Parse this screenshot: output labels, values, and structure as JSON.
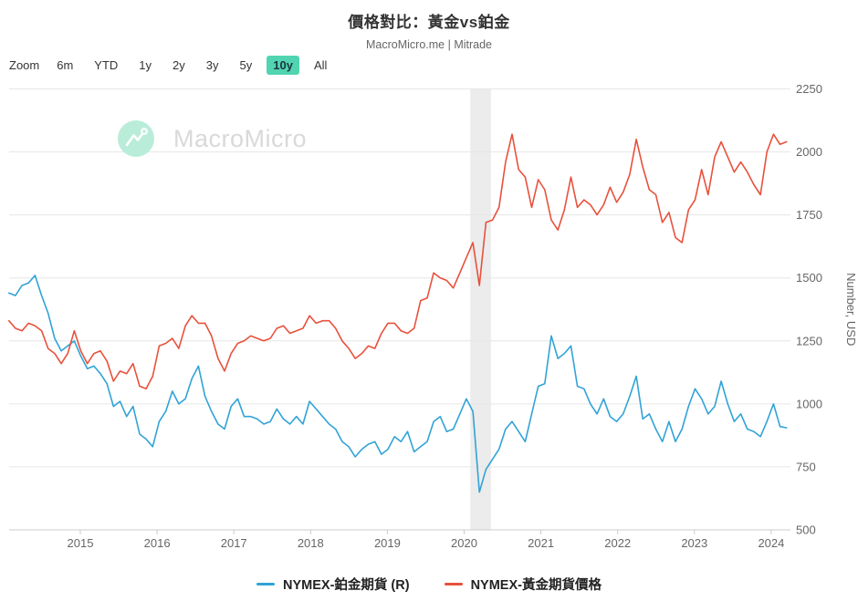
{
  "header": {
    "title": "價格對比：黃金vs鉑金",
    "subtitle": "MacroMicro.me | Mitrade"
  },
  "toolbar": {
    "zoom_label": "Zoom",
    "ranges": [
      "6m",
      "YTD",
      "1y",
      "2y",
      "3y",
      "5y",
      "10y",
      "All"
    ],
    "active_range": "10y"
  },
  "watermark": {
    "text": "MacroMicro"
  },
  "colors": {
    "platinum": "#31a3d7",
    "gold": "#e8513c",
    "accent": "#50d5b0",
    "grid": "#e6e6e6",
    "axis": "#cccccc",
    "tick_label": "#666666",
    "plot_band": "#ececec"
  },
  "legend": [
    {
      "id": "platinum",
      "label": "NYMEX-鉑金期貨 (R)",
      "color": "#31a3d7"
    },
    {
      "id": "gold",
      "label": "NYMEX-黃金期貨價格",
      "color": "#e8513c"
    }
  ],
  "chart_data": {
    "type": "line",
    "title": "價格對比：黃金vs鉑金",
    "subtitle": "MacroMicro.me | Mitrade",
    "xlabel": "",
    "ylabel": "Number, USD",
    "ylim": [
      500,
      2250
    ],
    "y_ticks": [
      500,
      750,
      1000,
      1250,
      1500,
      1750,
      2000,
      2250
    ],
    "x_ticks": [
      2015,
      2016,
      2017,
      2018,
      2019,
      2020,
      2021,
      2022,
      2023,
      2024
    ],
    "xlim": [
      2014.07,
      2024.2
    ],
    "grid": "horizontal",
    "legend_position": "bottom",
    "plot_band": {
      "from": 2020.08,
      "to": 2020.35,
      "label": "recession-shading"
    },
    "x_start": 2014.07,
    "x_end": 2024.2,
    "x_unit": "decimal-year, monthly sampling",
    "series": [
      {
        "name": "NYMEX-鉑金期貨 (R)",
        "color": "#31a3d7",
        "values": [
          1440,
          1430,
          1470,
          1480,
          1510,
          1430,
          1360,
          1260,
          1210,
          1230,
          1250,
          1190,
          1140,
          1150,
          1120,
          1080,
          990,
          1010,
          950,
          990,
          880,
          860,
          830,
          930,
          970,
          1050,
          1000,
          1020,
          1100,
          1150,
          1030,
          970,
          920,
          900,
          990,
          1020,
          950,
          950,
          940,
          920,
          930,
          980,
          940,
          920,
          950,
          920,
          1010,
          980,
          950,
          920,
          900,
          850,
          830,
          790,
          820,
          840,
          850,
          800,
          820,
          870,
          850,
          890,
          810,
          830,
          850,
          930,
          950,
          890,
          900,
          960,
          1020,
          970,
          650,
          740,
          780,
          820,
          900,
          930,
          890,
          850,
          960,
          1070,
          1080,
          1270,
          1180,
          1200,
          1230,
          1070,
          1060,
          1000,
          960,
          1020,
          950,
          930,
          960,
          1030,
          1110,
          940,
          960,
          900,
          850,
          930,
          850,
          900,
          990,
          1060,
          1020,
          960,
          990,
          1090,
          1000,
          930,
          960,
          900,
          890,
          870,
          930,
          1000,
          910,
          905
        ]
      },
      {
        "name": "NYMEX-黃金期貨價格",
        "color": "#e8513c",
        "values": [
          1330,
          1300,
          1290,
          1320,
          1310,
          1290,
          1220,
          1200,
          1160,
          1200,
          1290,
          1210,
          1160,
          1200,
          1210,
          1170,
          1090,
          1130,
          1120,
          1160,
          1070,
          1060,
          1110,
          1230,
          1240,
          1260,
          1220,
          1310,
          1350,
          1320,
          1320,
          1270,
          1180,
          1130,
          1200,
          1240,
          1250,
          1270,
          1260,
          1250,
          1260,
          1300,
          1310,
          1280,
          1290,
          1300,
          1350,
          1320,
          1330,
          1330,
          1300,
          1250,
          1220,
          1180,
          1200,
          1230,
          1220,
          1280,
          1320,
          1320,
          1290,
          1280,
          1300,
          1410,
          1420,
          1520,
          1500,
          1490,
          1460,
          1520,
          1580,
          1640,
          1470,
          1720,
          1730,
          1780,
          1960,
          2070,
          1930,
          1900,
          1780,
          1890,
          1850,
          1730,
          1690,
          1770,
          1900,
          1780,
          1810,
          1790,
          1750,
          1790,
          1860,
          1800,
          1840,
          1910,
          2050,
          1940,
          1850,
          1830,
          1720,
          1760,
          1660,
          1640,
          1770,
          1810,
          1930,
          1830,
          1980,
          2040,
          1980,
          1920,
          1960,
          1920,
          1870,
          1830,
          2000,
          2070,
          2030,
          2040
        ]
      }
    ]
  }
}
